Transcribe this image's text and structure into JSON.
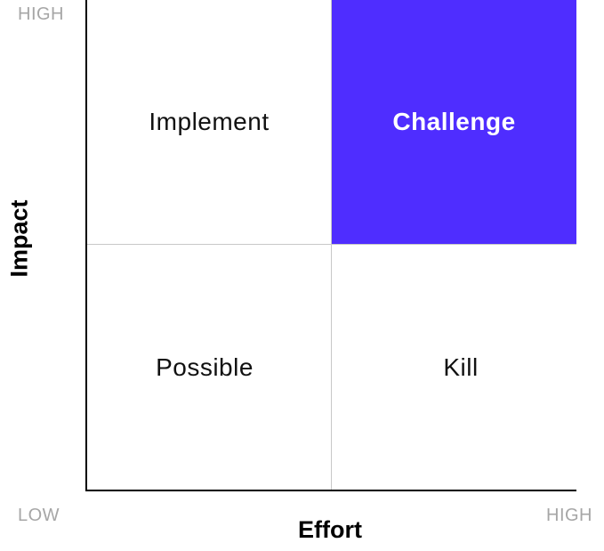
{
  "quadrants": {
    "top_left": "Implement",
    "top_right": "Challenge",
    "bottom_left": "Possible",
    "bottom_right": "Kill"
  },
  "axes": {
    "y_title": "Impact",
    "x_title": "Effort",
    "y_high": "HIGH",
    "origin_low": "LOW",
    "x_high": "HIGH"
  },
  "colors": {
    "highlight": "#4f2dff",
    "highlight_text": "#ffffff",
    "tick_text": "#a6a6a6",
    "divider": "#c8c8c8"
  }
}
